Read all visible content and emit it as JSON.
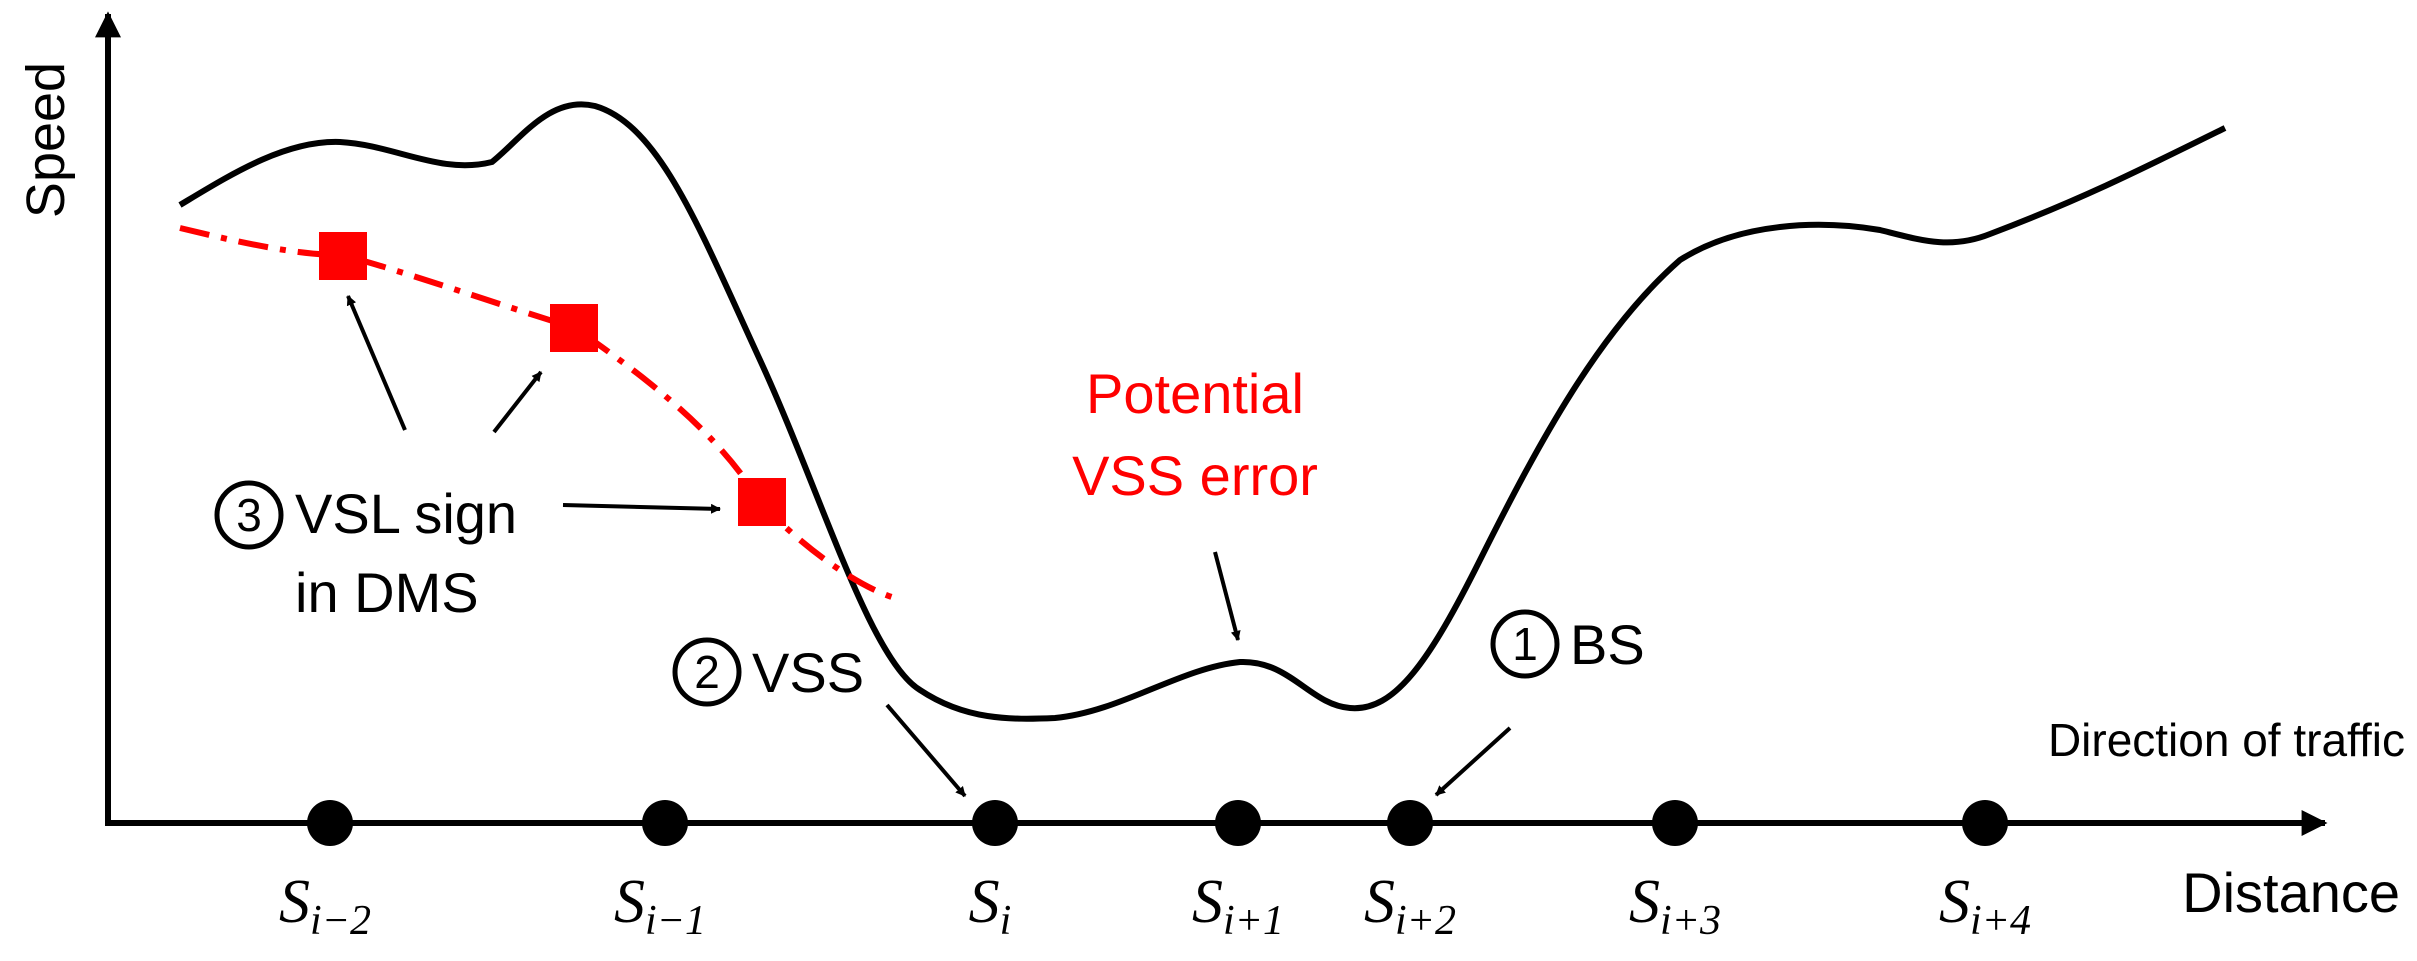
{
  "axes": {
    "y_label": "Speed",
    "x_label": "Distance",
    "direction_label": "Direction of traffic"
  },
  "stations": [
    {
      "base": "S",
      "sub": "i−2"
    },
    {
      "base": "S",
      "sub": "i−1"
    },
    {
      "base": "S",
      "sub": "i"
    },
    {
      "base": "S",
      "sub": "i+1"
    },
    {
      "base": "S",
      "sub": "i+2"
    },
    {
      "base": "S",
      "sub": "i+3"
    },
    {
      "base": "S",
      "sub": "i+4"
    }
  ],
  "annotations": {
    "bs": {
      "number": "1",
      "text": "BS"
    },
    "vss": {
      "number": "2",
      "text": "VSS"
    },
    "vsl": {
      "number": "3",
      "line1": "VSL sign",
      "line2": "in DMS"
    },
    "error": {
      "line1": "Potential",
      "line2": "VSS error"
    }
  },
  "colors": {
    "speed_curve": "#000000",
    "vsl_curve": "#ff0000",
    "error_text": "#ff0000",
    "stations": "#000000"
  }
}
